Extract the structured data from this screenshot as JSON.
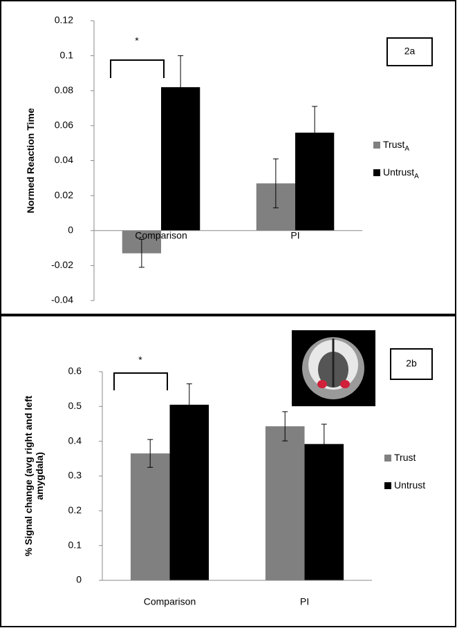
{
  "chart_data": [
    {
      "type": "bar",
      "panel_label": "2a",
      "significance_label": "*",
      "y_label_lines": [
        "Normed Reaction Time"
      ],
      "categories": [
        "Comparison",
        "PI"
      ],
      "series": [
        {
          "name": "Trust",
          "name_subscript": "A",
          "color": "#808080",
          "values": [
            -0.013,
            0.027
          ],
          "errors": [
            0.008,
            0.014
          ]
        },
        {
          "name": "Untrust",
          "name_subscript": "A",
          "color": "#000000",
          "values": [
            0.082,
            0.056
          ],
          "errors": [
            0.018,
            0.015
          ]
        }
      ],
      "ylim": [
        -0.04,
        0.12
      ],
      "yticks": [
        0.12,
        0.1,
        0.08,
        0.06,
        0.04,
        0.02,
        0,
        -0.02,
        -0.04
      ],
      "grid": false
    },
    {
      "type": "bar",
      "panel_label": "2b",
      "significance_label": "*",
      "y_label_lines": [
        "% Signal change (avg right and left",
        "amygdala)"
      ],
      "categories": [
        "Comparison",
        "PI"
      ],
      "series": [
        {
          "name": "Trust",
          "color": "#808080",
          "values": [
            0.365,
            0.443
          ],
          "errors": [
            0.04,
            0.042
          ]
        },
        {
          "name": "Untrust",
          "color": "#000000",
          "values": [
            0.505,
            0.392
          ],
          "errors": [
            0.06,
            0.057
          ]
        }
      ],
      "ylim": [
        0,
        0.6
      ],
      "yticks": [
        0,
        0.1,
        0.2,
        0.3,
        0.4,
        0.5,
        0.6
      ],
      "grid": false
    }
  ]
}
